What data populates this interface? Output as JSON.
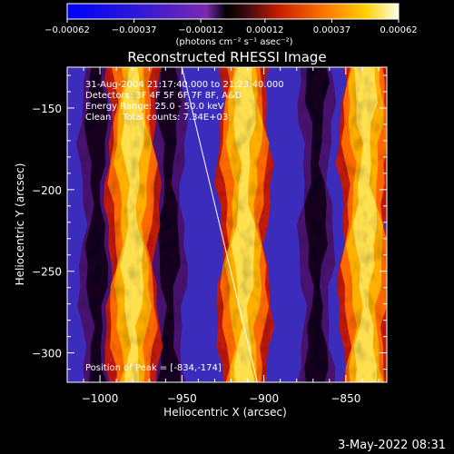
{
  "chart_data": {
    "type": "heatmap",
    "title": "Reconstructed RHESSI Image",
    "xlabel": "Heliocentric X (arcsec)",
    "ylabel": "Heliocentric Y (arcsec)",
    "xlim": [
      -1020,
      -825
    ],
    "ylim": [
      -318,
      -125
    ],
    "x_ticks": [
      -1000,
      -950,
      -900,
      -850
    ],
    "x_tick_labels": [
      "−1000",
      "−950",
      "−900",
      "−850"
    ],
    "y_ticks": [
      -150,
      -200,
      -250,
      -300
    ],
    "y_tick_labels": [
      "−150",
      "−200",
      "−250",
      "−300"
    ],
    "colorbar": {
      "ticks": [
        -0.00062,
        -0.00037,
        -0.00012,
        0.00012,
        0.00037,
        0.00062
      ],
      "tick_labels": [
        "−0.00062",
        "−0.00037",
        "−0.00012",
        "0.00012",
        "0.00037",
        "0.00062"
      ],
      "unit_label": "(photons cm⁻² s⁻¹ asec⁻²)",
      "range": [
        -0.00062,
        0.00062
      ]
    },
    "bright_stripe_centers_x": [
      -980,
      -912,
      -838
    ],
    "dark_stripe_centers_x": [
      -1002,
      -958,
      -868
    ],
    "limb_line": [
      [
        -950,
        -125
      ],
      [
        -904,
        -318
      ]
    ],
    "peak_position": [
      -834,
      -174
    ],
    "annotations": [
      "31-Aug-2004 21:17:40.000 to 21:23:40.000",
      "Detectors: 3F 4F 5F 6F 7F 8F, A&D",
      "Energy Range: 25.0 - 50.0 keV",
      "Clean    Total counts: 7.34E+03",
      "Position of Peak = [-834,-174]"
    ]
  },
  "footer": {
    "date": "3-May-2022 08:31"
  }
}
